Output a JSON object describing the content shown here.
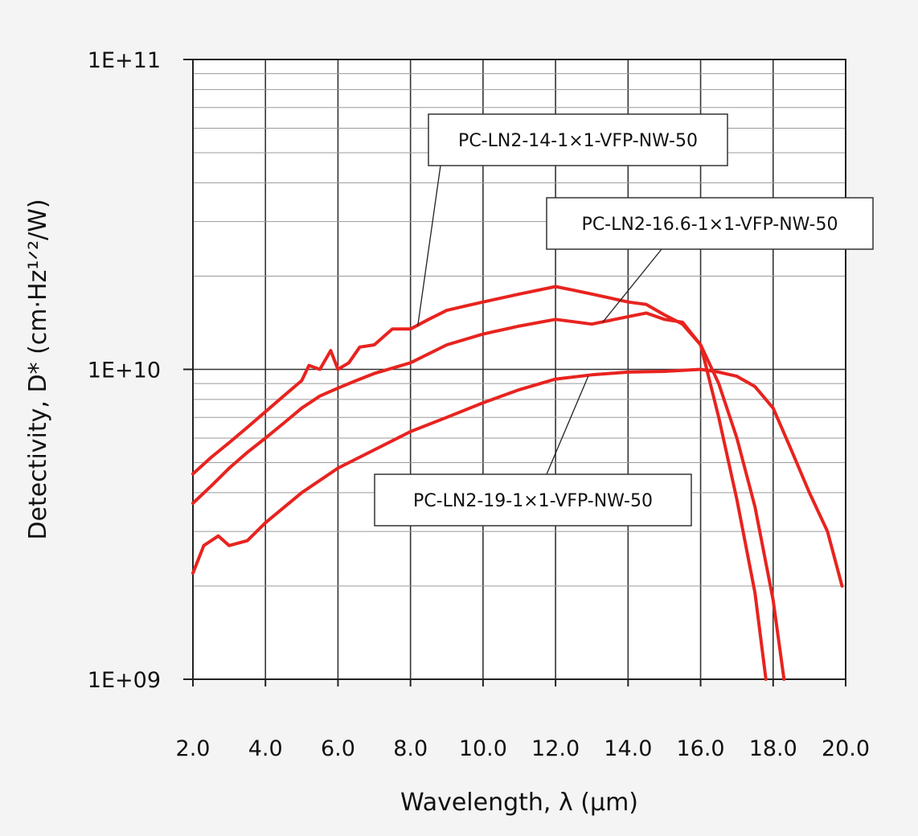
{
  "chart_data": {
    "type": "line",
    "title": "",
    "xlabel": "Wavelength, λ (μm)",
    "ylabel": "Detectivity, D* (cm·Hz¹ᐟ²/W)",
    "xlim": [
      2.0,
      20.0
    ],
    "ylim": [
      1000000000.0,
      100000000000.0
    ],
    "yscale": "log",
    "grid": true,
    "legend": "none",
    "x_ticks": [
      "2.0",
      "4.0",
      "6.0",
      "8.0",
      "10.0",
      "12.0",
      "14.0",
      "16.0",
      "18.0",
      "20.0"
    ],
    "y_ticks": [
      {
        "value": 1000000000.0,
        "label": "1E+09"
      },
      {
        "value": 10000000000.0,
        "label": "1E+10"
      },
      {
        "value": 100000000000.0,
        "label": "1E+11"
      }
    ],
    "line_color": "#e8231f",
    "series": [
      {
        "name": "PC-LN2-14-1×1-VFP-NW-50",
        "x": [
          2.0,
          2.5,
          3.0,
          3.5,
          4.0,
          4.5,
          5.0,
          5.2,
          5.5,
          5.8,
          6.0,
          6.3,
          6.6,
          7.0,
          7.5,
          8.0,
          8.5,
          9.0,
          9.5,
          10.0,
          11.0,
          12.0,
          12.5,
          13.0,
          13.5,
          14.0,
          14.5,
          15.0,
          15.5,
          16.0,
          16.5,
          17.0,
          17.5,
          17.8
        ],
        "y": [
          4600000000.0,
          5200000000.0,
          5800000000.0,
          6500000000.0,
          7300000000.0,
          8200000000.0,
          9200000000.0,
          10300000000.0,
          10000000000.0,
          11500000000.0,
          10000000000.0,
          10500000000.0,
          11800000000.0,
          12000000000.0,
          13500000000.0,
          13500000000.0,
          14500000000.0,
          15500000000.0,
          16000000000.0,
          16500000000.0,
          17500000000.0,
          18500000000.0,
          18000000000.0,
          17500000000.0,
          17000000000.0,
          16500000000.0,
          16200000000.0,
          15000000000.0,
          14000000000.0,
          12000000000.0,
          7000000000.0,
          3800000000.0,
          1900000000.0,
          1000000000.0
        ]
      },
      {
        "name": "PC-LN2-16.6-1×1-VFP-NW-50",
        "x": [
          2.0,
          2.5,
          3.0,
          3.5,
          4.0,
          4.5,
          5.0,
          5.5,
          6.0,
          6.5,
          7.0,
          8.0,
          9.0,
          10.0,
          11.0,
          12.0,
          13.0,
          14.0,
          14.5,
          15.0,
          15.5,
          16.0,
          16.5,
          17.0,
          17.5,
          18.0,
          18.3
        ],
        "y": [
          3700000000.0,
          4200000000.0,
          4800000000.0,
          5400000000.0,
          6000000000.0,
          6700000000.0,
          7500000000.0,
          8200000000.0,
          8700000000.0,
          9200000000.0,
          9700000000.0,
          10500000000.0,
          12000000000.0,
          13000000000.0,
          13800000000.0,
          14500000000.0,
          14000000000.0,
          14800000000.0,
          15200000000.0,
          14500000000.0,
          14200000000.0,
          12000000000.0,
          9000000000.0,
          6000000000.0,
          3600000000.0,
          1800000000.0,
          1000000000.0
        ]
      },
      {
        "name": "PC-LN2-19-1×1-VFP-NW-50",
        "x": [
          2.0,
          2.3,
          2.7,
          3.0,
          3.5,
          4.0,
          5.0,
          6.0,
          7.0,
          8.0,
          9.0,
          10.0,
          11.0,
          12.0,
          13.0,
          14.0,
          15.0,
          16.0,
          16.5,
          17.0,
          17.5,
          18.0,
          18.5,
          19.0,
          19.5,
          19.9
        ],
        "y": [
          2200000000.0,
          2700000000.0,
          2900000000.0,
          2700000000.0,
          2800000000.0,
          3200000000.0,
          4000000000.0,
          4800000000.0,
          5500000000.0,
          6300000000.0,
          7000000000.0,
          7800000000.0,
          8600000000.0,
          9300000000.0,
          9600000000.0,
          9800000000.0,
          9850000000.0,
          10000000000.0,
          9800000000.0,
          9500000000.0,
          8800000000.0,
          7500000000.0,
          5500000000.0,
          4000000000.0,
          3000000000.0,
          2000000000.0
        ]
      }
    ]
  }
}
